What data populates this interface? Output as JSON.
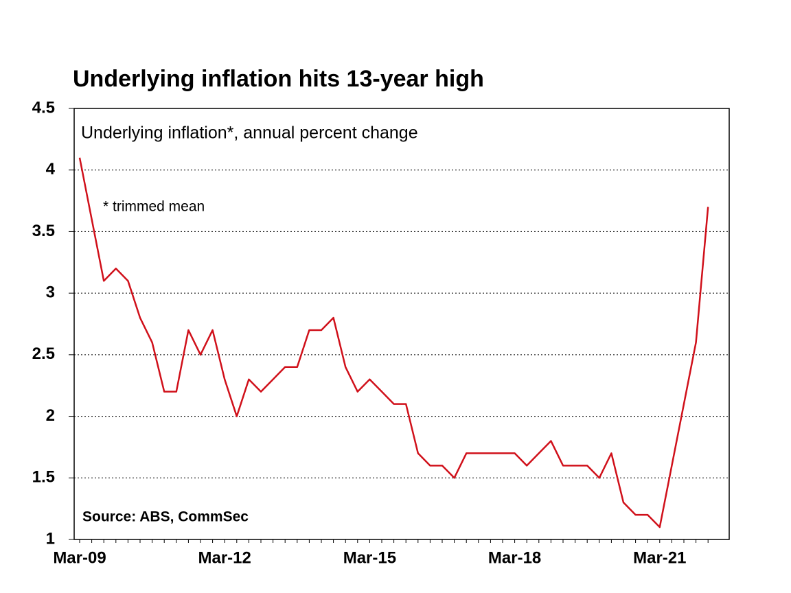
{
  "chart_data": {
    "type": "line",
    "title": "Underlying inflation hits 13-year high",
    "subtitle": "Underlying inflation*, annual percent change",
    "footnote": "* trimmed mean",
    "source": "Source: ABS, CommSec",
    "categories": [
      "Mar-09",
      null,
      null,
      null,
      null,
      null,
      null,
      null,
      null,
      null,
      null,
      null,
      "Mar-12",
      null,
      null,
      null,
      null,
      null,
      null,
      null,
      null,
      null,
      null,
      null,
      "Mar-15",
      null,
      null,
      null,
      null,
      null,
      null,
      null,
      null,
      null,
      null,
      null,
      "Mar-18",
      null,
      null,
      null,
      null,
      null,
      null,
      null,
      null,
      null,
      null,
      null,
      "Mar-21",
      null,
      null,
      null,
      null
    ],
    "series": [
      {
        "name": "Underlying inflation",
        "color": "#d0101a",
        "values": [
          4.1,
          3.6,
          3.1,
          3.2,
          3.1,
          2.8,
          2.6,
          2.2,
          2.2,
          2.7,
          2.5,
          2.7,
          2.3,
          2.0,
          2.3,
          2.2,
          2.3,
          2.4,
          2.4,
          2.7,
          2.7,
          2.8,
          2.4,
          2.2,
          2.3,
          2.2,
          2.1,
          2.1,
          1.7,
          1.6,
          1.6,
          1.5,
          1.7,
          1.7,
          1.7,
          1.7,
          1.7,
          1.6,
          1.7,
          1.8,
          1.6,
          1.6,
          1.6,
          1.5,
          1.7,
          1.3,
          1.2,
          1.2,
          1.1,
          1.6,
          2.1,
          2.6,
          3.7
        ]
      }
    ],
    "ylim": [
      1,
      4.5
    ],
    "yticks": [
      1,
      1.5,
      2,
      2.5,
      3,
      3.5,
      4,
      4.5
    ],
    "grid": true
  }
}
